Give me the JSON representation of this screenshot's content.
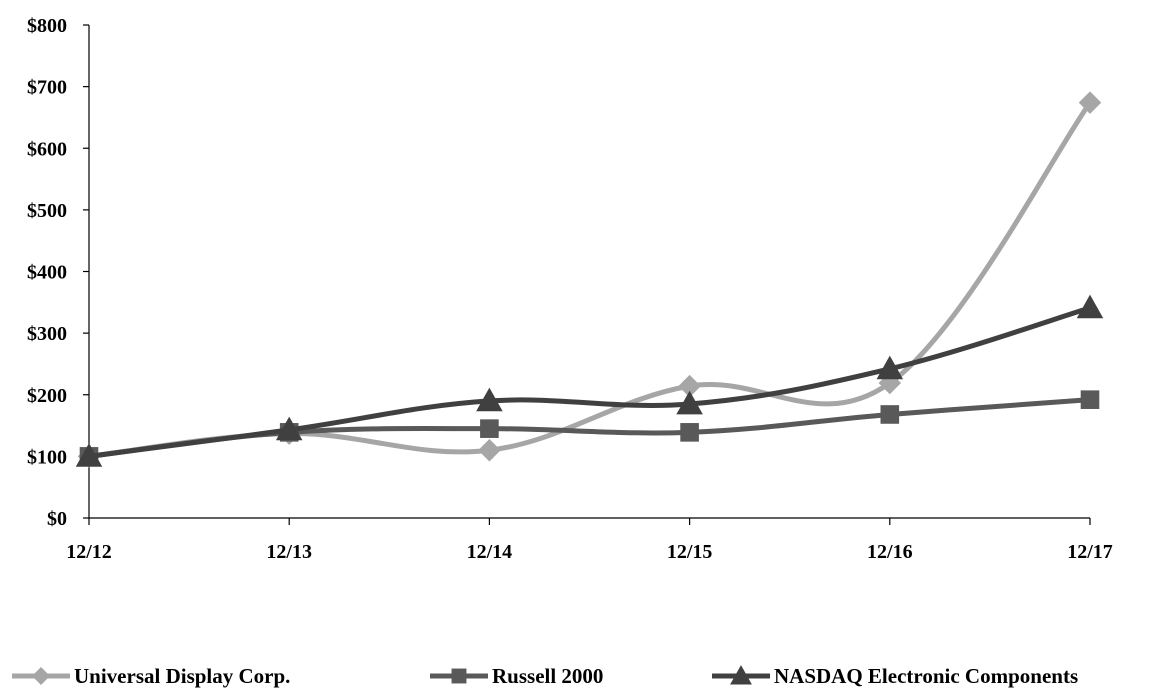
{
  "chart_data": {
    "type": "line",
    "title": "",
    "xlabel": "",
    "ylabel": "",
    "categories": [
      "12/12",
      "12/13",
      "12/14",
      "12/15",
      "12/16",
      "12/17"
    ],
    "y_ticks": [
      "$0",
      "$100",
      "$200",
      "$300",
      "$400",
      "$500",
      "$600",
      "$700",
      "$800"
    ],
    "ylim": [
      0,
      800
    ],
    "grid": false,
    "legend_position": "bottom",
    "series": [
      {
        "name": "Universal Display Corp.",
        "values": [
          100,
          137,
          110,
          214,
          219,
          674
        ],
        "color": "#a6a6a6",
        "marker": "diamond"
      },
      {
        "name": "Russell 2000",
        "values": [
          100,
          139,
          145,
          139,
          168,
          192
        ],
        "color": "#595959",
        "marker": "square"
      },
      {
        "name": "NASDAQ Electronic Components",
        "values": [
          100,
          143,
          190,
          185,
          242,
          341
        ],
        "color": "#404040",
        "marker": "triangle"
      }
    ]
  }
}
